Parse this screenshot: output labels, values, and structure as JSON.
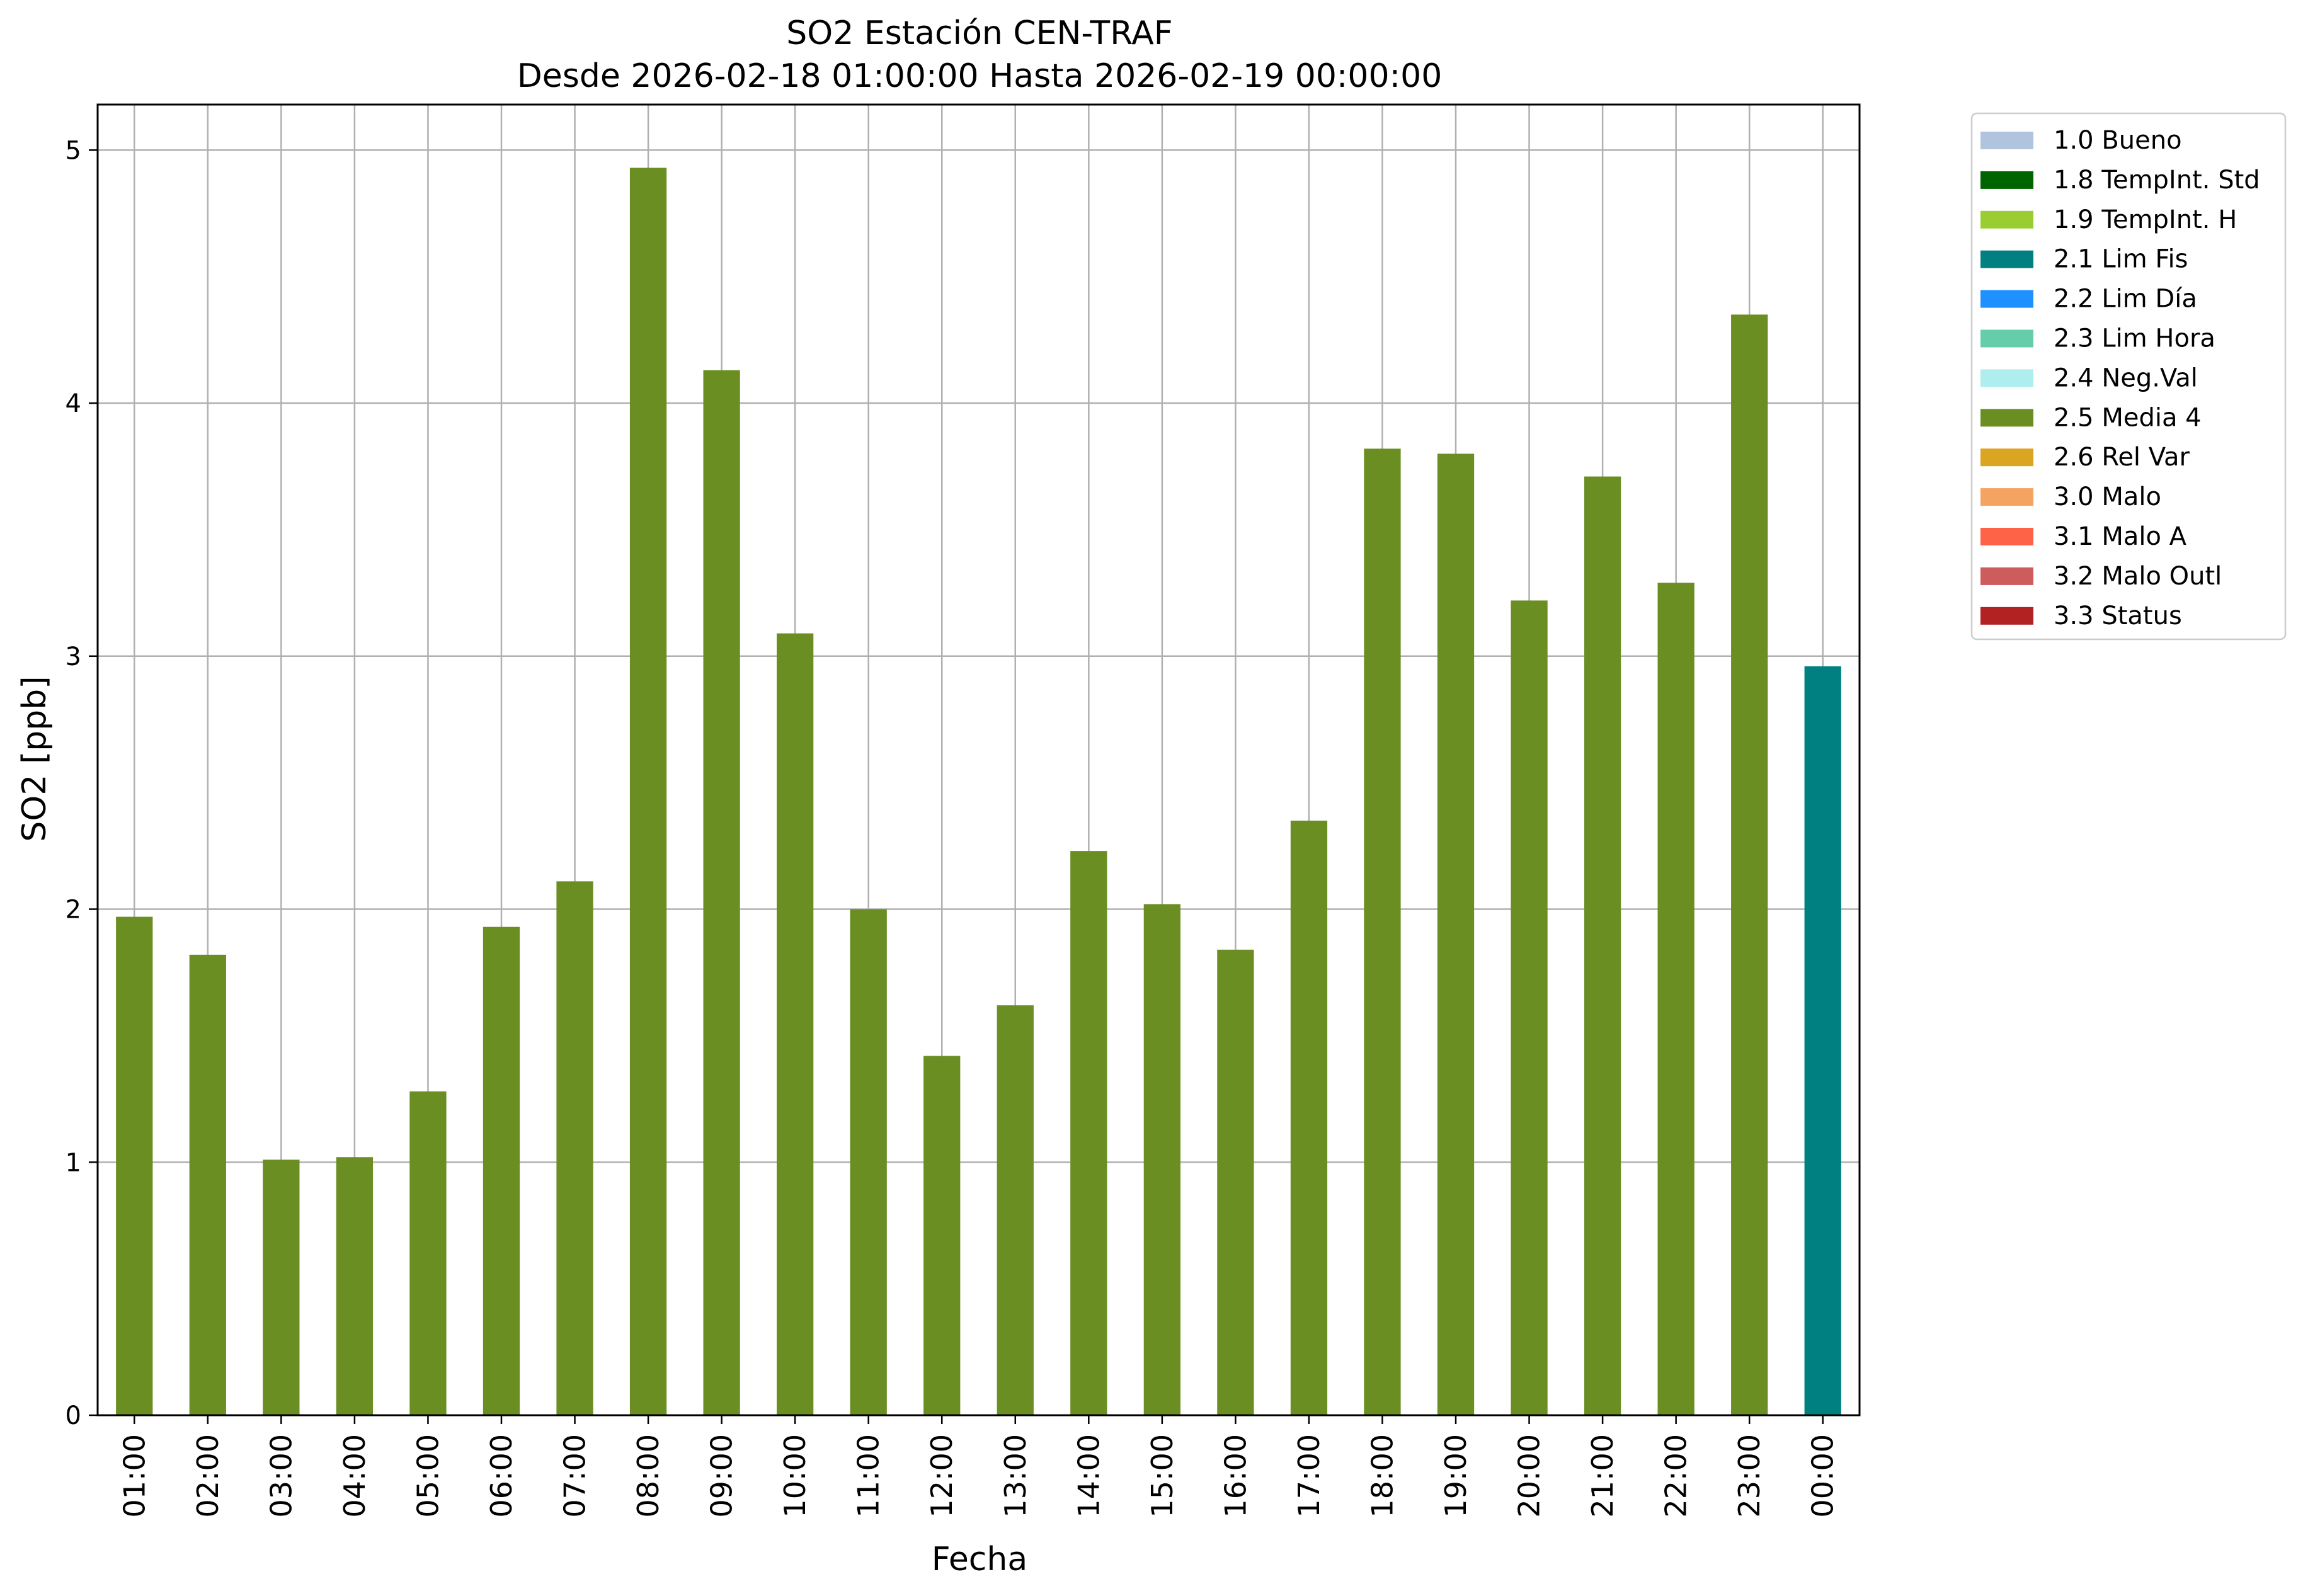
{
  "chart_data": {
    "type": "bar",
    "title": "SO2 Estación CEN-TRAF",
    "subtitle": "Desde 2026-02-18 01:00:00 Hasta 2026-02-19 00:00:00",
    "xlabel": "Fecha",
    "ylabel": "SO2 [ppb]",
    "ylim": [
      0,
      5.18
    ],
    "yticks": [
      "0",
      "1",
      "2",
      "3",
      "4",
      "5"
    ],
    "grid": true,
    "legend_position": "outside-right",
    "categories": [
      "01:00",
      "02:00",
      "03:00",
      "04:00",
      "05:00",
      "06:00",
      "07:00",
      "08:00",
      "09:00",
      "10:00",
      "11:00",
      "12:00",
      "13:00",
      "14:00",
      "15:00",
      "16:00",
      "17:00",
      "18:00",
      "19:00",
      "20:00",
      "21:00",
      "22:00",
      "23:00",
      "00:00"
    ],
    "values": [
      1.97,
      1.82,
      1.01,
      1.02,
      1.28,
      1.93,
      2.11,
      4.93,
      4.13,
      3.09,
      2.0,
      1.42,
      1.62,
      2.23,
      2.02,
      1.84,
      2.35,
      3.82,
      3.8,
      3.22,
      3.71,
      3.29,
      4.35,
      2.96
    ],
    "flags": [
      "2.5 Media 4",
      "2.5 Media 4",
      "2.5 Media 4",
      "2.5 Media 4",
      "2.5 Media 4",
      "2.5 Media 4",
      "2.5 Media 4",
      "2.5 Media 4",
      "2.5 Media 4",
      "2.5 Media 4",
      "2.5 Media 4",
      "2.5 Media 4",
      "2.5 Media 4",
      "2.5 Media 4",
      "2.5 Media 4",
      "2.5 Media 4",
      "2.5 Media 4",
      "2.5 Media 4",
      "2.5 Media 4",
      "2.5 Media 4",
      "2.5 Media 4",
      "2.5 Media 4",
      "2.5 Media 4",
      "2.1 Lim Fis"
    ],
    "legend": [
      {
        "label": "1.0 Bueno",
        "color": "#b0c4de"
      },
      {
        "label": "1.8 TempInt. Std",
        "color": "#006400"
      },
      {
        "label": "1.9 TempInt. H",
        "color": "#9acd32"
      },
      {
        "label": "2.1 Lim Fis",
        "color": "#008080"
      },
      {
        "label": "2.2 Lim Día",
        "color": "#1e90ff"
      },
      {
        "label": "2.3 Lim Hora",
        "color": "#66cdaa"
      },
      {
        "label": "2.4 Neg.Val",
        "color": "#afeeee"
      },
      {
        "label": "2.5 Media 4",
        "color": "#6b8e23"
      },
      {
        "label": "2.6 Rel Var",
        "color": "#daa520"
      },
      {
        "label": "3.0 Malo",
        "color": "#f4a460"
      },
      {
        "label": "3.1 Malo A",
        "color": "#ff6347"
      },
      {
        "label": "3.2 Malo Outl",
        "color": "#cd5c5c"
      },
      {
        "label": "3.3 Status",
        "color": "#b22222"
      }
    ]
  }
}
